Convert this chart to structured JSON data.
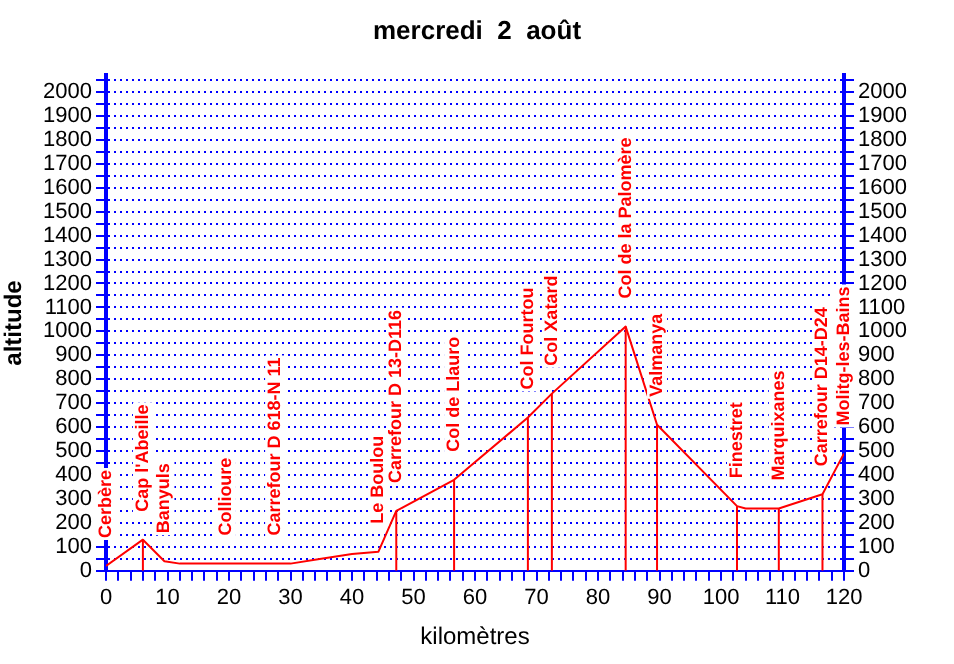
{
  "chart_data": {
    "type": "line",
    "title": "mercredi  2  août",
    "xlabel": "kilomètres",
    "ylabel": "altitude",
    "x": [
      0,
      6,
      9.5,
      12,
      19.5,
      27.5,
      30,
      35,
      40,
      44.3,
      47.2,
      56.6,
      68.6,
      72.5,
      84.5,
      86,
      89.6,
      102.6,
      104,
      109.4,
      116.5,
      120
    ],
    "series": [
      {
        "color": "#ff0000",
        "values": [
          20,
          130,
          40,
          30,
          30,
          30,
          30,
          50,
          70,
          80,
          250,
          380,
          640,
          740,
          1020,
          900,
          610,
          270,
          260,
          260,
          320,
          490
        ]
      },
      {
        "color": "#ff0000",
        "x": [
          6,
          6,
          null,
          47.2,
          47.2,
          null,
          56.6,
          56.6,
          null,
          68.6,
          68.6,
          null,
          72.5,
          72.5,
          null,
          84.5,
          84.5,
          null,
          89.6,
          89.6,
          null,
          102.6,
          102.6,
          null,
          109.4,
          109.4,
          null,
          116.5,
          116.5
        ],
        "values": [
          0,
          130,
          null,
          0,
          250,
          null,
          0,
          380,
          null,
          0,
          640,
          null,
          0,
          740,
          null,
          0,
          1020,
          null,
          0,
          610,
          null,
          0,
          270,
          null,
          0,
          260,
          null,
          0,
          320
        ]
      }
    ],
    "xlim": [
      0,
      120
    ],
    "xticks": [
      0,
      {
        "value": 2,
        "label": null
      },
      {
        "value": 4,
        "label": null
      },
      {
        "value": 6,
        "label": null
      },
      {
        "value": 8,
        "label": null
      },
      10,
      {
        "value": 12,
        "label": null
      },
      {
        "value": 14,
        "label": null
      },
      {
        "value": 16,
        "label": null
      },
      {
        "value": 18,
        "label": null
      },
      20,
      {
        "value": 22,
        "label": null
      },
      {
        "value": 24,
        "label": null
      },
      {
        "value": 26,
        "label": null
      },
      {
        "value": 28,
        "label": null
      },
      30,
      {
        "value": 32,
        "label": null
      },
      {
        "value": 34,
        "label": null
      },
      {
        "value": 36,
        "label": null
      },
      {
        "value": 38,
        "label": null
      },
      40,
      {
        "value": 42,
        "label": null
      },
      {
        "value": 44,
        "label": null
      },
      {
        "value": 46,
        "label": null
      },
      {
        "value": 48,
        "label": null
      },
      50,
      {
        "value": 52,
        "label": null
      },
      {
        "value": 54,
        "label": null
      },
      {
        "value": 56,
        "label": null
      },
      {
        "value": 58,
        "label": null
      },
      60,
      {
        "value": 62,
        "label": null
      },
      {
        "value": 64,
        "label": null
      },
      {
        "value": 66,
        "label": null
      },
      {
        "value": 68,
        "label": null
      },
      70,
      {
        "value": 72,
        "label": null
      },
      {
        "value": 74,
        "label": null
      },
      {
        "value": 76,
        "label": null
      },
      {
        "value": 78,
        "label": null
      },
      80,
      {
        "value": 82,
        "label": null
      },
      {
        "value": 84,
        "label": null
      },
      {
        "value": 86,
        "label": null
      },
      {
        "value": 88,
        "label": null
      },
      90,
      {
        "value": 92,
        "label": null
      },
      {
        "value": 94,
        "label": null
      },
      {
        "value": 96,
        "label": null
      },
      {
        "value": 98,
        "label": null
      },
      100,
      {
        "value": 102,
        "label": null
      },
      {
        "value": 104,
        "label": null
      },
      {
        "value": 106,
        "label": null
      },
      {
        "value": 108,
        "label": null
      },
      110,
      {
        "value": 112,
        "label": null
      },
      {
        "value": 114,
        "label": null
      },
      {
        "value": 116,
        "label": null
      },
      {
        "value": 118,
        "label": null
      },
      120
    ],
    "ylim": [
      0,
      2070
    ],
    "yticks": [
      0,
      {
        "value": 50,
        "label": null
      },
      100,
      {
        "value": 150,
        "label": null
      },
      200,
      {
        "value": 250,
        "label": null
      },
      300,
      {
        "value": 350,
        "label": null
      },
      400,
      {
        "value": 450,
        "label": null
      },
      500,
      {
        "value": 550,
        "label": null
      },
      600,
      {
        "value": 650,
        "label": null
      },
      700,
      {
        "value": 750,
        "label": null
      },
      800,
      {
        "value": 850,
        "label": null
      },
      900,
      {
        "value": 950,
        "label": null
      },
      1000,
      {
        "value": 1050,
        "label": null
      },
      1100,
      {
        "value": 1150,
        "label": null
      },
      1200,
      {
        "value": 1250,
        "label": null
      },
      1300,
      {
        "value": 1350,
        "label": null
      },
      1400,
      {
        "value": 1450,
        "label": null
      },
      1500,
      {
        "value": 1550,
        "label": null
      },
      1600,
      {
        "value": 1650,
        "label": null
      },
      1700,
      {
        "value": 1750,
        "label": null
      },
      1800,
      {
        "value": 1850,
        "label": null
      },
      1900,
      {
        "value": 1950,
        "label": null
      },
      2000,
      {
        "value": 2050,
        "label": null
      }
    ],
    "y2lim": [
      0,
      2070
    ],
    "y2ticks": [
      0,
      {
        "value": 50,
        "label": null
      },
      100,
      {
        "value": 150,
        "label": null
      },
      200,
      {
        "value": 250,
        "label": null
      },
      300,
      {
        "value": 350,
        "label": null
      },
      400,
      {
        "value": 450,
        "label": null
      },
      500,
      {
        "value": 550,
        "label": null
      },
      600,
      {
        "value": 650,
        "label": null
      },
      700,
      {
        "value": 750,
        "label": null
      },
      800,
      {
        "value": 850,
        "label": null
      },
      900,
      {
        "value": 950,
        "label": null
      },
      1000,
      {
        "value": 1050,
        "label": null
      },
      1100,
      {
        "value": 1150,
        "label": null
      },
      1200,
      {
        "value": 1250,
        "label": null
      },
      1300,
      {
        "value": 1350,
        "label": null
      },
      1400,
      {
        "value": 1450,
        "label": null
      },
      1500,
      {
        "value": 1550,
        "label": null
      },
      1600,
      {
        "value": 1650,
        "label": null
      },
      1700,
      {
        "value": 1750,
        "label": null
      },
      1800,
      {
        "value": 1850,
        "label": null
      },
      1900,
      {
        "value": 1950,
        "label": null
      },
      2000,
      {
        "value": 2050,
        "label": null
      }
    ],
    "grid": "y",
    "legend": false,
    "marker": "none",
    "line_style": "solid",
    "annotations": [
      {
        "text": "Cerbère",
        "x": 0,
        "y": 20
      },
      {
        "text": "Cap l'Abeille",
        "x": 6,
        "y": 130
      },
      {
        "text": "Banyuls",
        "x": 9.5,
        "y": 40
      },
      {
        "text": "Collioure",
        "x": 19.5,
        "y": 30
      },
      {
        "text": "Carrefour D 618-N 11",
        "x": 27.5,
        "y": 30
      },
      {
        "text": "Le Boulou",
        "x": 44.3,
        "y": 80
      },
      {
        "text": "Carrefour D 13-D116",
        "x": 47.2,
        "y": 250
      },
      {
        "text": "Col de Llauro",
        "x": 56.6,
        "y": 380
      },
      {
        "text": "Col Fourtou",
        "x": 68.6,
        "y": 640
      },
      {
        "text": "Col Xatard",
        "x": 72.5,
        "y": 740
      },
      {
        "text": "Col de la Palomère",
        "x": 84.5,
        "y": 1020
      },
      {
        "text": "Valmanya",
        "x": 89.6,
        "y": 610
      },
      {
        "text": "Finestret",
        "x": 102.6,
        "y": 270
      },
      {
        "text": "Marquixanes",
        "x": 109.4,
        "y": 260
      },
      {
        "text": "Carrefour D14-D24",
        "x": 116.5,
        "y": 320
      },
      {
        "text": "Molitg-les-Bains",
        "x": 120,
        "y": 490
      }
    ]
  }
}
